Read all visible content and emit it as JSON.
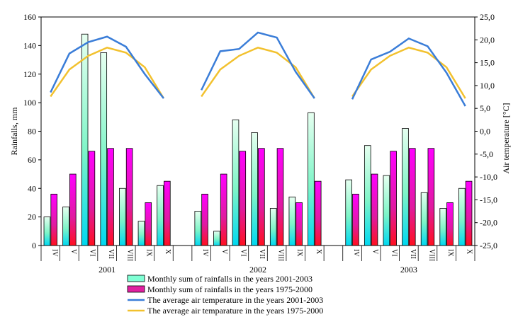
{
  "chart_data": {
    "type": "bar",
    "ylabel": "Rainfalls, mm",
    "y2label": "Air temperature [°C]",
    "ylim": [
      0,
      160
    ],
    "yticks": [
      0,
      20,
      40,
      60,
      80,
      100,
      120,
      140,
      160
    ],
    "y2lim": [
      -25,
      25
    ],
    "y2ticks": [
      "-25,0",
      "-20,0",
      "-15,0",
      "-10,0",
      "-5,0",
      "0,0",
      "5,0",
      "10,0",
      "15,0",
      "20,0",
      "25,0"
    ],
    "months": [
      "IV",
      "V",
      "VI",
      "VII",
      "VIII",
      "IX",
      "X"
    ],
    "groups": [
      {
        "year": "2001",
        "rain_current": [
          20,
          27,
          148,
          135,
          40,
          17,
          42
        ],
        "temp_current": [
          8.5,
          17,
          19.5,
          20.7,
          18.5,
          12.5,
          7.2
        ]
      },
      {
        "year": "2002",
        "rain_current": [
          24,
          10,
          88,
          79,
          26,
          34,
          93
        ],
        "temp_current": [
          9,
          17.5,
          18,
          21.6,
          20.5,
          13,
          7.2
        ]
      },
      {
        "year": "2003",
        "rain_current": [
          46,
          70,
          49,
          82,
          37,
          26,
          40
        ],
        "temp_current": [
          7,
          15.7,
          17.4,
          20.3,
          18.6,
          12.8,
          5.5
        ]
      }
    ],
    "rain_normal": [
      36,
      50,
      66,
      68,
      68,
      30,
      45
    ],
    "temp_normal": [
      7.6,
      13.5,
      16.5,
      18.3,
      17.2,
      14,
      7.2
    ],
    "legend": [
      {
        "label": "Monthly sum of rainfalls in the years 2001-2003",
        "kind": "bar",
        "color": "#7fffd4"
      },
      {
        "label": "Monthly sum of rainfalls in the years 1975-2000",
        "kind": "bar",
        "color": "#e020a0"
      },
      {
        "label": "The average air temperature in the years 2001-2003",
        "kind": "line",
        "color": "#3a7dd8"
      },
      {
        "label": "The average air temparature in the years 1975-2000",
        "kind": "line",
        "color": "#f2c12e"
      }
    ]
  }
}
